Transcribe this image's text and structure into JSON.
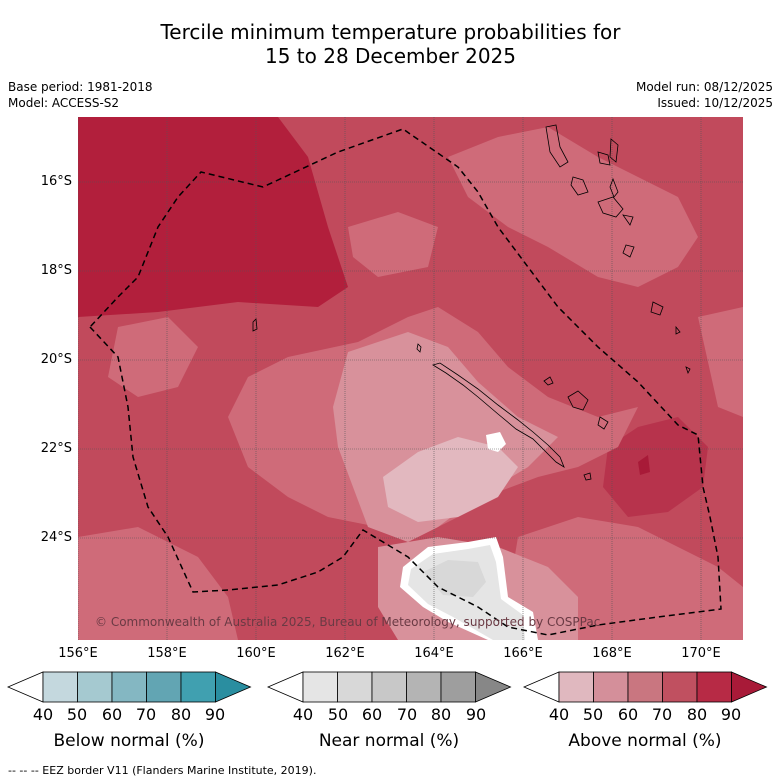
{
  "title": {
    "line1": "Tercile minimum temperature probabilities for",
    "line2": "15 to 28 December 2025"
  },
  "meta": {
    "base_period": "Base period: 1981-2018",
    "model": "Model: ACCESS-S2",
    "model_run": "Model run: 08/12/2025",
    "issued": "Issued: 10/12/2025"
  },
  "map": {
    "lat_labels": [
      "16°S",
      "18°S",
      "20°S",
      "22°S",
      "24°S"
    ],
    "lon_labels": [
      "156°E",
      "158°E",
      "160°E",
      "162°E",
      "164°E",
      "166°E",
      "168°E",
      "170°E"
    ],
    "copyright": "© Commonwealth of Australia 2025, Bureau of Meteorology, supported by COSPPac",
    "colors": {
      "land_outline": "#000000",
      "eez_line": "#000000",
      "grid": "#555555"
    }
  },
  "colorbars": [
    {
      "label": "Below normal (%)",
      "ticks": [
        "40",
        "50",
        "60",
        "70",
        "80",
        "90"
      ],
      "colors": [
        "#ffffff",
        "#c4d8de",
        "#a5c9d0",
        "#84b7c2",
        "#62a5b3",
        "#40a0b0",
        "#2a8ea0"
      ]
    },
    {
      "label": "Near normal (%)",
      "ticks": [
        "40",
        "50",
        "60",
        "70",
        "80",
        "90"
      ],
      "colors": [
        "#ffffff",
        "#e5e5e5",
        "#d8d8d8",
        "#c8c8c8",
        "#b4b4b4",
        "#9e9e9e",
        "#878787"
      ]
    },
    {
      "label": "Above normal (%)",
      "ticks": [
        "40",
        "50",
        "60",
        "70",
        "80",
        "90"
      ],
      "colors": [
        "#ffffff",
        "#e0b8bf",
        "#d48f9a",
        "#c97680",
        "#c05060",
        "#b72a45",
        "#a81a38"
      ]
    }
  ],
  "footer": "--  --  -- EEZ border V11 (Flanders Marine Institute, 2019)."
}
